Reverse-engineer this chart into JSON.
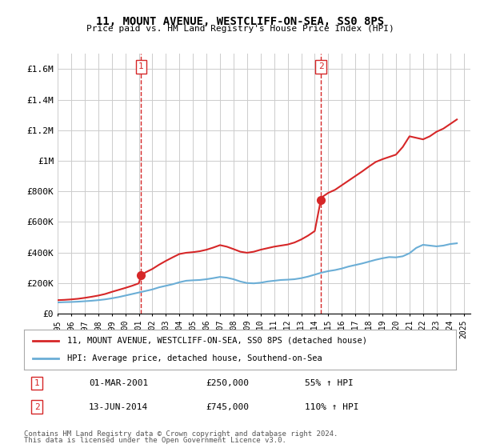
{
  "title": "11, MOUNT AVENUE, WESTCLIFF-ON-SEA, SS0 8PS",
  "subtitle": "Price paid vs. HM Land Registry's House Price Index (HPI)",
  "legend_line1": "11, MOUNT AVENUE, WESTCLIFF-ON-SEA, SS0 8PS (detached house)",
  "legend_line2": "HPI: Average price, detached house, Southend-on-Sea",
  "footer1": "Contains HM Land Registry data © Crown copyright and database right 2024.",
  "footer2": "This data is licensed under the Open Government Licence v3.0.",
  "sale1_label": "1",
  "sale1_date": "01-MAR-2001",
  "sale1_price": "£250,000",
  "sale1_hpi": "55% ↑ HPI",
  "sale2_label": "2",
  "sale2_date": "13-JUN-2014",
  "sale2_price": "£745,000",
  "sale2_hpi": "110% ↑ HPI",
  "sale1_x": 2001.17,
  "sale1_y": 250000,
  "sale2_x": 2014.45,
  "sale2_y": 745000,
  "hpi_color": "#6baed6",
  "price_color": "#d62728",
  "vline_color": "#d62728",
  "background_color": "#ffffff",
  "grid_color": "#cccccc",
  "ylim": [
    0,
    1700000
  ],
  "xlim": [
    1995,
    2025.5
  ],
  "yticks": [
    0,
    200000,
    400000,
    600000,
    800000,
    1000000,
    1200000,
    1400000,
    1600000
  ],
  "ytick_labels": [
    "£0",
    "£200K",
    "£400K",
    "£600K",
    "£800K",
    "£1M",
    "£1.2M",
    "£1.4M",
    "£1.6M"
  ],
  "xticks": [
    1995,
    1996,
    1997,
    1998,
    1999,
    2000,
    2001,
    2002,
    2003,
    2004,
    2005,
    2006,
    2007,
    2008,
    2009,
    2010,
    2011,
    2012,
    2013,
    2014,
    2015,
    2016,
    2017,
    2018,
    2019,
    2020,
    2021,
    2022,
    2023,
    2024,
    2025
  ],
  "hpi_x": [
    1995,
    1995.5,
    1996,
    1996.5,
    1997,
    1997.5,
    1998,
    1998.5,
    1999,
    1999.5,
    2000,
    2000.5,
    2001,
    2001.5,
    2002,
    2002.5,
    2003,
    2003.5,
    2004,
    2004.5,
    2005,
    2005.5,
    2006,
    2006.5,
    2007,
    2007.5,
    2008,
    2008.5,
    2009,
    2009.5,
    2010,
    2010.5,
    2011,
    2011.5,
    2012,
    2012.5,
    2013,
    2013.5,
    2014,
    2014.5,
    2015,
    2015.5,
    2016,
    2016.5,
    2017,
    2017.5,
    2018,
    2018.5,
    2019,
    2019.5,
    2020,
    2020.5,
    2021,
    2021.5,
    2022,
    2022.5,
    2023,
    2023.5,
    2024,
    2024.5
  ],
  "hpi_y": [
    73000,
    75000,
    76000,
    78000,
    81000,
    84000,
    88000,
    93000,
    100000,
    108000,
    118000,
    128000,
    138000,
    148000,
    158000,
    172000,
    182000,
    192000,
    205000,
    215000,
    218000,
    220000,
    225000,
    232000,
    240000,
    235000,
    225000,
    210000,
    200000,
    198000,
    202000,
    210000,
    215000,
    220000,
    222000,
    225000,
    232000,
    242000,
    255000,
    268000,
    278000,
    285000,
    295000,
    308000,
    318000,
    328000,
    340000,
    352000,
    362000,
    370000,
    368000,
    375000,
    395000,
    430000,
    450000,
    445000,
    440000,
    445000,
    455000,
    460000
  ],
  "price_x": [
    1995,
    1995.5,
    1996,
    1996.5,
    1997,
    1997.5,
    1998,
    1998.5,
    1999,
    1999.5,
    2000,
    2000.5,
    2001,
    2001.17,
    2001.5,
    2002,
    2002.5,
    2003,
    2003.5,
    2004,
    2004.5,
    2005,
    2005.5,
    2006,
    2006.5,
    2007,
    2007.5,
    2008,
    2008.5,
    2009,
    2009.5,
    2010,
    2010.5,
    2011,
    2011.5,
    2012,
    2012.5,
    2013,
    2013.5,
    2014,
    2014.45,
    2014.5,
    2015,
    2015.5,
    2016,
    2016.5,
    2017,
    2017.5,
    2018,
    2018.5,
    2019,
    2019.5,
    2020,
    2020.5,
    2021,
    2021.5,
    2022,
    2022.5,
    2023,
    2023.5,
    2024,
    2024.5
  ],
  "price_y": [
    88000,
    90000,
    93000,
    97000,
    103000,
    110000,
    118000,
    128000,
    142000,
    155000,
    168000,
    182000,
    198000,
    250000,
    270000,
    292000,
    320000,
    345000,
    368000,
    390000,
    398000,
    402000,
    408000,
    418000,
    432000,
    448000,
    438000,
    422000,
    405000,
    398000,
    405000,
    418000,
    428000,
    438000,
    445000,
    452000,
    465000,
    485000,
    510000,
    540000,
    745000,
    760000,
    790000,
    810000,
    840000,
    870000,
    900000,
    930000,
    962000,
    992000,
    1010000,
    1025000,
    1040000,
    1090000,
    1160000,
    1150000,
    1140000,
    1160000,
    1190000,
    1210000,
    1240000,
    1270000
  ]
}
